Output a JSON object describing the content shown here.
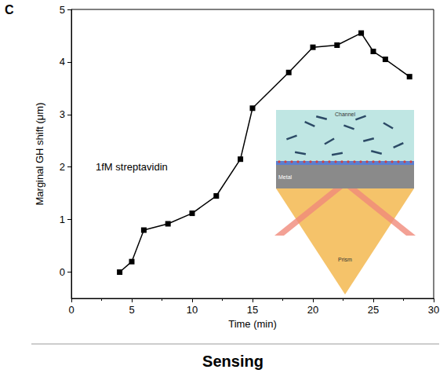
{
  "chart_data": {
    "type": "line",
    "panel_label": "C",
    "caption": "Sensing",
    "annotation": "1fM streptavidin",
    "x_label": "Time (min)",
    "y_label": "Marginal GH shift (μm)",
    "x": [
      4,
      5,
      6,
      8,
      10,
      12,
      14,
      15,
      18,
      20,
      22,
      24,
      25,
      26,
      28
    ],
    "values": [
      0,
      0.2,
      0.8,
      0.92,
      1.12,
      1.45,
      2.15,
      3.12,
      3.8,
      4.28,
      4.32,
      4.55,
      4.2,
      4.05,
      3.72
    ],
    "color": "#000000",
    "marker": "square",
    "line_style": "solid",
    "xlim": [
      0,
      30
    ],
    "xticks": [
      0,
      5,
      10,
      15,
      20,
      25,
      30
    ],
    "ylim": [
      -0.5,
      5
    ],
    "yticks": [
      0,
      1,
      2,
      3,
      4,
      5
    ],
    "grid": false,
    "inset_labels": {
      "top": "Channel",
      "middle": "Metal",
      "bottom": "Prism"
    }
  }
}
